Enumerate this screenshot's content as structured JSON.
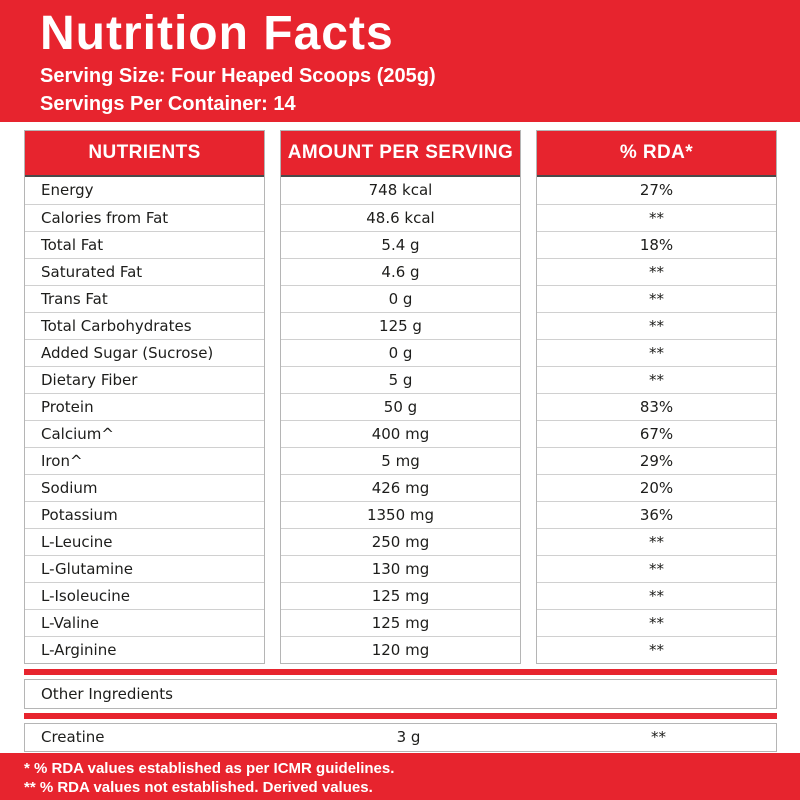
{
  "header": {
    "title": "Nutrition Facts",
    "serving_size": "Serving Size: Four Heaped Scoops (205g)",
    "servings_per_container": "Servings Per Container: 14"
  },
  "table": {
    "columns": [
      "NUTRIENTS",
      "AMOUNT PER SERVING",
      "% RDA*"
    ],
    "rows": [
      {
        "nutrient": "Energy",
        "amount": "748 kcal",
        "rda": "27%"
      },
      {
        "nutrient": "Calories from Fat",
        "amount": "48.6 kcal",
        "rda": "**"
      },
      {
        "nutrient": "Total Fat",
        "amount": "5.4 g",
        "rda": "18%"
      },
      {
        "nutrient": "Saturated Fat",
        "amount": "4.6 g",
        "rda": "**"
      },
      {
        "nutrient": "Trans Fat",
        "amount": "0 g",
        "rda": "**"
      },
      {
        "nutrient": "Total Carbohydrates",
        "amount": "125 g",
        "rda": "**"
      },
      {
        "nutrient": "Added Sugar (Sucrose)",
        "amount": "0 g",
        "rda": "**"
      },
      {
        "nutrient": "Dietary Fiber",
        "amount": "5 g",
        "rda": "**"
      },
      {
        "nutrient": "Protein",
        "amount": "50 g",
        "rda": "83%"
      },
      {
        "nutrient": "Calcium^",
        "amount": "400 mg",
        "rda": "67%"
      },
      {
        "nutrient": "Iron^",
        "amount": "5 mg",
        "rda": "29%"
      },
      {
        "nutrient": "Sodium",
        "amount": "426 mg",
        "rda": "20%"
      },
      {
        "nutrient": "Potassium",
        "amount": "1350 mg",
        "rda": "36%"
      },
      {
        "nutrient": "L-Leucine",
        "amount": "250 mg",
        "rda": "**"
      },
      {
        "nutrient": "L-Glutamine",
        "amount": "130 mg",
        "rda": "**"
      },
      {
        "nutrient": "L-Isoleucine",
        "amount": "125 mg",
        "rda": "**"
      },
      {
        "nutrient": "L-Valine",
        "amount": "125 mg",
        "rda": "**"
      },
      {
        "nutrient": "L-Arginine",
        "amount": "120 mg",
        "rda": "**"
      }
    ]
  },
  "other_ingredients": {
    "label": "Other Ingredients",
    "rows": [
      {
        "nutrient": "Creatine",
        "amount": "3 g",
        "rda": "**"
      }
    ]
  },
  "footnotes": [
    "* % RDA values established as per ICMR guidelines.",
    "** % RDA values not established. Derived values."
  ],
  "colors": {
    "brand_red": "#e7242e",
    "border_gray": "#b5b5b5",
    "row_line_gray": "#d0d0d0",
    "text_dark": "#1d1d1b"
  }
}
